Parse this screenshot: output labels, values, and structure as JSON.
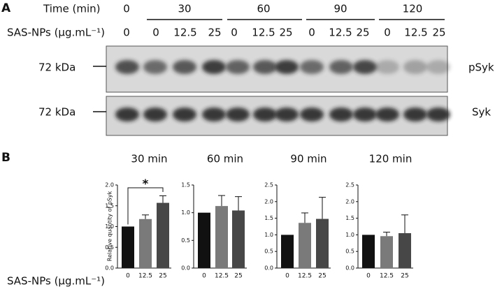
{
  "panel_a": {
    "label": "A",
    "time_label": "Time (min)",
    "times": [
      "0",
      "30",
      "60",
      "90",
      "120"
    ],
    "conc_label": "SAS-NPs (µg.mL⁻¹)",
    "concentrations": [
      "0",
      "0",
      "12.5",
      "25",
      "0",
      "12.5",
      "25",
      "0",
      "12.5",
      "25",
      "0",
      "12.5",
      "25"
    ],
    "blots": [
      {
        "marker": "72 kDa",
        "name": "pSyk"
      },
      {
        "marker": "72 kDa",
        "name": "Syk"
      }
    ]
  },
  "panel_b": {
    "label": "B",
    "y_label": "Relative quantity of pSyk",
    "x_label": "SAS-NPs (µg.mL⁻¹)"
  },
  "chart_data": [
    {
      "type": "bar",
      "title": "30 min",
      "categories": [
        "0",
        "12.5",
        "25"
      ],
      "values": [
        1.0,
        1.18,
        1.57
      ],
      "errors": [
        0,
        0.1,
        0.17
      ],
      "colors": [
        "#111111",
        "#7a7a7a",
        "#474747"
      ],
      "ylim": [
        0,
        2
      ],
      "yticks": [
        {
          "value": 0,
          "label": "0.0"
        },
        {
          "value": 0.5,
          "label": "0.5"
        },
        {
          "value": 1,
          "label": "1.0"
        },
        {
          "value": 1.5,
          "label": "1.5"
        },
        {
          "value": 2,
          "label": "2.0"
        }
      ],
      "significance": "*"
    },
    {
      "type": "bar",
      "title": "60 min",
      "categories": [
        "0",
        "12.5",
        "25"
      ],
      "values": [
        1.0,
        1.12,
        1.04
      ],
      "errors": [
        0,
        0.19,
        0.25
      ],
      "colors": [
        "#111111",
        "#7a7a7a",
        "#474747"
      ],
      "ylim": [
        0,
        1.5
      ],
      "yticks": [
        {
          "value": 0,
          "label": "0.0"
        },
        {
          "value": 0.5,
          "label": "0.5"
        },
        {
          "value": 1,
          "label": "1.0"
        },
        {
          "value": 1.5,
          "label": "1.5"
        }
      ]
    },
    {
      "type": "bar",
      "title": "90 min",
      "categories": [
        "0",
        "12.5",
        "25"
      ],
      "values": [
        1.0,
        1.36,
        1.48
      ],
      "errors": [
        0,
        0.3,
        0.65
      ],
      "colors": [
        "#111111",
        "#7a7a7a",
        "#474747"
      ],
      "ylim": [
        0,
        2.5
      ],
      "yticks": [
        {
          "value": 0,
          "label": "0.0"
        },
        {
          "value": 0.5,
          "label": "0.5"
        },
        {
          "value": 1,
          "label": "1.0"
        },
        {
          "value": 1.5,
          "label": "1.5"
        },
        {
          "value": 2,
          "label": "2.0"
        },
        {
          "value": 2.5,
          "label": "2.5"
        }
      ]
    },
    {
      "type": "bar",
      "title": "120 min",
      "categories": [
        "0",
        "12.5",
        "25"
      ],
      "values": [
        1.0,
        0.96,
        1.05
      ],
      "errors": [
        0,
        0.12,
        0.55
      ],
      "colors": [
        "#111111",
        "#7a7a7a",
        "#474747"
      ],
      "ylim": [
        0,
        2.5
      ],
      "yticks": [
        {
          "value": 0,
          "label": "0.0"
        },
        {
          "value": 0.5,
          "label": "0.5"
        },
        {
          "value": 1,
          "label": "1.0"
        },
        {
          "value": 1.5,
          "label": "1.5"
        },
        {
          "value": 2,
          "label": "2.0"
        },
        {
          "value": 2.5,
          "label": "2.5"
        }
      ]
    }
  ]
}
